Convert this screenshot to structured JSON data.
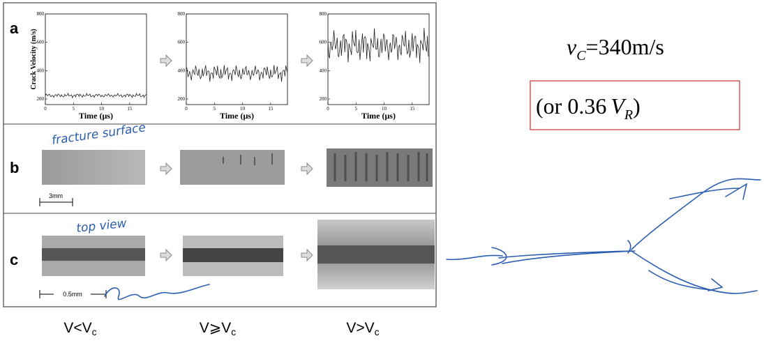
{
  "figure": {
    "panels": [
      {
        "label": "a",
        "plots": [
          {
            "ylabel": "Crack Velocity (m/s)",
            "xlabel": "Time (μs)",
            "yticks": [
              200,
              400,
              600,
              800
            ],
            "xticks": [
              0,
              5,
              10,
              15
            ]
          },
          {
            "xlabel": "Time (μs)",
            "yticks": [
              200,
              400,
              600,
              800
            ],
            "xticks": [
              0,
              5,
              10,
              15
            ]
          },
          {
            "xlabel": "Time (μs)",
            "yticks": [
              200,
              400,
              600,
              800
            ],
            "xticks": [
              0,
              5,
              10,
              15
            ]
          }
        ]
      },
      {
        "label": "b",
        "scale": "3mm"
      },
      {
        "label": "c",
        "scale": "0.5mm"
      }
    ]
  },
  "conditions": [
    {
      "main": "V<V",
      "sub": "c"
    },
    {
      "main": "V⩾V",
      "sub": "c"
    },
    {
      "main": "V>V",
      "sub": "c"
    }
  ],
  "equation": {
    "symbol": "v",
    "sub": "C",
    "rhs": "=340m/s"
  },
  "alternative": {
    "open": "(or 0.36",
    "symbol": "V",
    "sub": "R",
    "close": ")"
  },
  "annotations": [
    "fracture surface",
    "top view"
  ]
}
